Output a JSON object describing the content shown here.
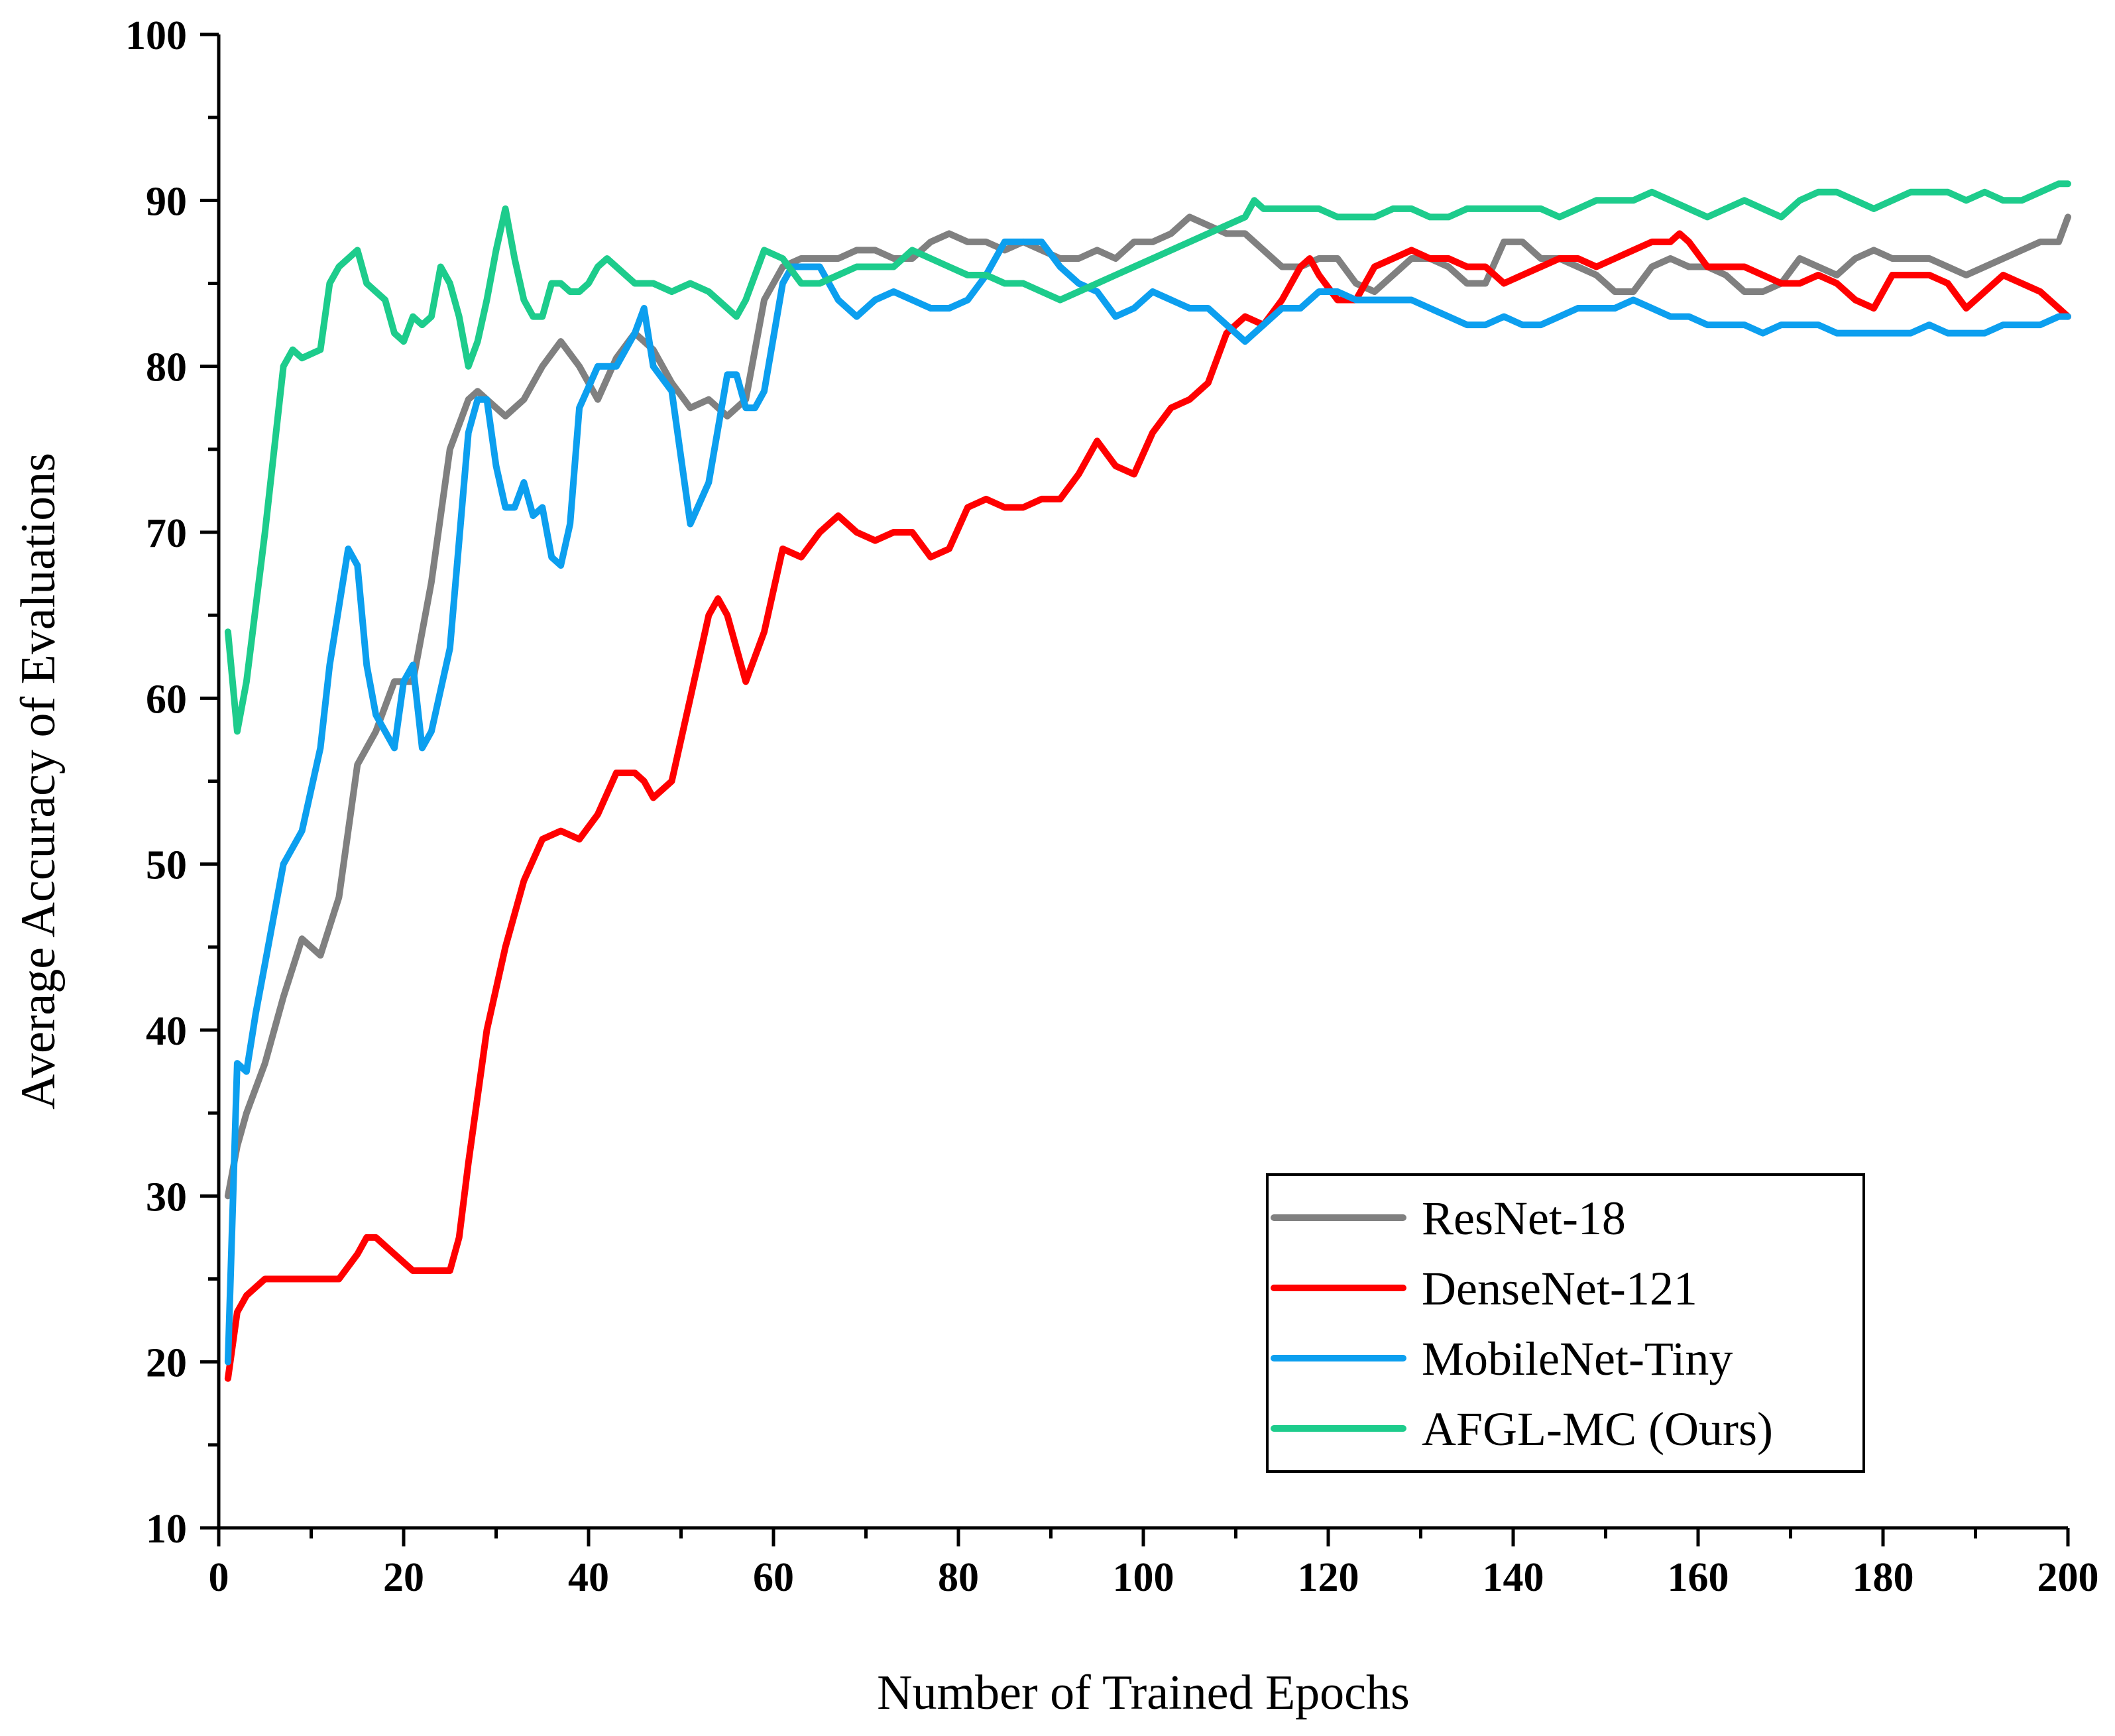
{
  "chart_data": {
    "type": "line",
    "title": "",
    "xlabel": "Number of Trained Epochs",
    "ylabel": "Average Accuracy of Evaluations",
    "xlim": [
      0,
      200
    ],
    "ylim": [
      10,
      100
    ],
    "xticks": [
      0,
      20,
      40,
      60,
      80,
      100,
      120,
      140,
      160,
      180,
      200
    ],
    "yticks": [
      10,
      20,
      30,
      40,
      50,
      60,
      70,
      80,
      90,
      100
    ],
    "xtick_labels": [
      "0",
      "20",
      "40",
      "60",
      "80",
      "100",
      "120",
      "140",
      "160",
      "180",
      "200"
    ],
    "ytick_labels": [
      "10",
      "20",
      "30",
      "40",
      "50",
      "60",
      "70",
      "80",
      "90",
      "100"
    ],
    "legend_position": "bottom-right",
    "grid": false,
    "series": [
      {
        "name": "ResNet-18",
        "color": "#808080",
        "x": [
          1,
          2,
          3,
          5,
          7,
          9,
          11,
          13,
          15,
          17,
          19,
          21,
          23,
          25,
          27,
          28,
          29,
          31,
          33,
          35,
          37,
          39,
          41,
          43,
          45,
          47,
          49,
          51,
          53,
          55,
          57,
          59,
          61,
          63,
          65,
          67,
          69,
          71,
          73,
          75,
          77,
          79,
          81,
          83,
          85,
          87,
          89,
          91,
          93,
          95,
          97,
          99,
          101,
          103,
          105,
          107,
          109,
          111,
          113,
          115,
          117,
          119,
          121,
          123,
          125,
          127,
          129,
          131,
          133,
          135,
          137,
          139,
          141,
          143,
          145,
          147,
          149,
          151,
          153,
          155,
          157,
          159,
          161,
          163,
          165,
          167,
          169,
          171,
          173,
          175,
          177,
          179,
          181,
          183,
          185,
          187,
          189,
          191,
          193,
          195,
          197,
          199,
          200
        ],
        "values": [
          30,
          33,
          35,
          38,
          42,
          45.5,
          44.5,
          48,
          56,
          58,
          61,
          61,
          67,
          75,
          78,
          78.5,
          78,
          77,
          78,
          80,
          81.5,
          80,
          78,
          80.5,
          82,
          81,
          79,
          77.5,
          78,
          77,
          78,
          84,
          86,
          86.5,
          86.5,
          86.5,
          87,
          87,
          86.5,
          86.5,
          87.5,
          88,
          87.5,
          87.5,
          87,
          87.5,
          87,
          86.5,
          86.5,
          87,
          86.5,
          87.5,
          87.5,
          88,
          89,
          88.5,
          88,
          88,
          87,
          86,
          86,
          86.5,
          86.5,
          85,
          84.5,
          85.5,
          86.5,
          86.5,
          86,
          85,
          85,
          87.5,
          87.5,
          86.5,
          86.5,
          86,
          85.5,
          84.5,
          84.5,
          86,
          86.5,
          86,
          86,
          85.5,
          84.5,
          84.5,
          85,
          86.5,
          86,
          85.5,
          86.5,
          87,
          86.5,
          86.5,
          86.5,
          86,
          85.5,
          86,
          86.5,
          87,
          87.5,
          87.5,
          89
        ]
      },
      {
        "name": "DenseNet-121",
        "color": "#ff0000",
        "x": [
          1,
          2,
          3,
          5,
          7,
          9,
          11,
          13,
          15,
          16,
          17,
          19,
          21,
          23,
          25,
          26,
          27,
          28,
          29,
          31,
          33,
          35,
          37,
          39,
          41,
          43,
          45,
          46,
          47,
          49,
          51,
          53,
          54,
          55,
          57,
          59,
          61,
          63,
          65,
          67,
          69,
          71,
          73,
          75,
          77,
          79,
          81,
          83,
          85,
          87,
          89,
          91,
          93,
          95,
          97,
          99,
          101,
          103,
          105,
          107,
          109,
          111,
          113,
          115,
          117,
          118,
          119,
          121,
          123,
          125,
          127,
          129,
          131,
          133,
          135,
          137,
          139,
          141,
          143,
          145,
          147,
          149,
          151,
          153,
          155,
          157,
          158,
          159,
          161,
          163,
          165,
          167,
          169,
          171,
          173,
          175,
          177,
          179,
          181,
          183,
          185,
          187,
          189,
          191,
          193,
          195,
          197,
          199,
          200
        ],
        "values": [
          19,
          23,
          24,
          25,
          25,
          25,
          25,
          25,
          26.5,
          27.5,
          27.5,
          26.5,
          25.5,
          25.5,
          25.5,
          27.5,
          32,
          36,
          40,
          45,
          49,
          51.5,
          52,
          51.5,
          53,
          55.5,
          55.5,
          55,
          54,
          55,
          60,
          65,
          66,
          65,
          61,
          64,
          69,
          68.5,
          70,
          71,
          70,
          69.5,
          70,
          70,
          68.5,
          69,
          71.5,
          72,
          71.5,
          71.5,
          72,
          72,
          73.5,
          75.5,
          74,
          73.5,
          76,
          77.5,
          78,
          79,
          82,
          83,
          82.5,
          84,
          86,
          86.5,
          85.5,
          84,
          84,
          86,
          86.5,
          87,
          86.5,
          86.5,
          86,
          86,
          85,
          85.5,
          86,
          86.5,
          86.5,
          86,
          86.5,
          87,
          87.5,
          87.5,
          88,
          87.5,
          86,
          86,
          86,
          85.5,
          85,
          85,
          85.5,
          85,
          84,
          83.5,
          85.5,
          85.5,
          85.5,
          85,
          83.5,
          84.5,
          85.5,
          85,
          84.5,
          83.5,
          83
        ]
      },
      {
        "name": "MobileNet-Tiny",
        "color": "#0c9fef",
        "x": [
          1,
          2,
          3,
          4,
          5,
          7,
          9,
          11,
          12,
          14,
          15,
          16,
          17,
          19,
          20,
          21,
          22,
          23,
          25,
          27,
          28,
          29,
          30,
          31,
          32,
          33,
          34,
          35,
          36,
          37,
          38,
          39,
          41,
          43,
          45,
          46,
          47,
          49,
          51,
          53,
          55,
          56,
          57,
          58,
          59,
          61,
          62,
          63,
          65,
          67,
          69,
          71,
          73,
          75,
          77,
          79,
          81,
          83,
          85,
          87,
          89,
          91,
          93,
          95,
          97,
          99,
          101,
          103,
          105,
          107,
          109,
          111,
          113,
          115,
          117,
          119,
          121,
          123,
          125,
          127,
          129,
          131,
          133,
          135,
          137,
          139,
          141,
          143,
          145,
          147,
          149,
          151,
          153,
          155,
          157,
          159,
          161,
          163,
          165,
          167,
          169,
          171,
          173,
          175,
          177,
          179,
          181,
          183,
          185,
          187,
          189,
          191,
          193,
          195,
          197,
          199,
          200
        ],
        "values": [
          20,
          38,
          37.5,
          41,
          44,
          50,
          52,
          57,
          62,
          69,
          68,
          62,
          59,
          57,
          61,
          62,
          57,
          58,
          63,
          76,
          78,
          78,
          74,
          71.5,
          71.5,
          73,
          71,
          71.5,
          68.5,
          68,
          70.5,
          77.5,
          80,
          80,
          82,
          83.5,
          80,
          78.5,
          70.5,
          73,
          79.5,
          79.5,
          77.5,
          77.5,
          78.5,
          85,
          86,
          86,
          86,
          84,
          83,
          84,
          84.5,
          84,
          83.5,
          83.5,
          84,
          85.5,
          87.5,
          87.5,
          87.5,
          86,
          85,
          84.5,
          83,
          83.5,
          84.5,
          84,
          83.5,
          83.5,
          82.5,
          81.5,
          82.5,
          83.5,
          83.5,
          84.5,
          84.5,
          84,
          84,
          84,
          84,
          83.5,
          83,
          82.5,
          82.5,
          83,
          82.5,
          82.5,
          83,
          83.5,
          83.5,
          83.5,
          84,
          83.5,
          83,
          83,
          82.5,
          82.5,
          82.5,
          82,
          82.5,
          82.5,
          82.5,
          82,
          82,
          82,
          82,
          82,
          82.5,
          82,
          82,
          82,
          82.5,
          82.5,
          82.5,
          83,
          83
        ]
      },
      {
        "name": "AFGL-MC (Ours)",
        "color": "#1dcc8c",
        "x": [
          1,
          2,
          3,
          5,
          7,
          8,
          9,
          11,
          12,
          13,
          15,
          16,
          17,
          18,
          19,
          20,
          21,
          22,
          23,
          24,
          25,
          26,
          27,
          28,
          29,
          30,
          31,
          32,
          33,
          34,
          35,
          36,
          37,
          38,
          39,
          40,
          41,
          42,
          43,
          45,
          47,
          49,
          51,
          53,
          55,
          56,
          57,
          59,
          61,
          63,
          65,
          67,
          69,
          71,
          73,
          75,
          77,
          79,
          81,
          83,
          85,
          87,
          89,
          91,
          93,
          95,
          97,
          99,
          101,
          103,
          105,
          107,
          109,
          111,
          112,
          113,
          115,
          117,
          119,
          121,
          123,
          125,
          127,
          129,
          131,
          133,
          135,
          137,
          139,
          141,
          143,
          145,
          147,
          149,
          151,
          153,
          155,
          157,
          159,
          161,
          163,
          165,
          167,
          169,
          171,
          173,
          175,
          177,
          179,
          181,
          183,
          185,
          187,
          189,
          191,
          193,
          195,
          197,
          199,
          200
        ],
        "values": [
          64,
          58,
          61,
          70,
          80,
          81,
          80.5,
          81,
          85,
          86,
          87,
          85,
          84.5,
          84,
          82,
          81.5,
          83,
          82.5,
          83,
          86,
          85,
          83,
          80,
          81.5,
          84,
          87,
          89.5,
          86.5,
          84,
          83,
          83,
          85,
          85,
          84.5,
          84.5,
          85,
          86,
          86.5,
          86,
          85,
          85,
          84.5,
          85,
          84.5,
          83.5,
          83,
          84,
          87,
          86.5,
          85,
          85,
          85.5,
          86,
          86,
          86,
          87,
          86.5,
          86,
          85.5,
          85.5,
          85,
          85,
          84.5,
          84,
          84.5,
          85,
          85.5,
          86,
          86.5,
          87,
          87.5,
          88,
          88.5,
          89,
          90,
          89.5,
          89.5,
          89.5,
          89.5,
          89,
          89,
          89,
          89.5,
          89.5,
          89,
          89,
          89.5,
          89.5,
          89.5,
          89.5,
          89.5,
          89,
          89.5,
          90,
          90,
          90,
          90.5,
          90,
          89.5,
          89,
          89.5,
          90,
          89.5,
          89,
          90,
          90.5,
          90.5,
          90,
          89.5,
          90,
          90.5,
          90.5,
          90.5,
          90,
          90.5,
          90,
          90,
          90.5,
          91,
          91
        ]
      }
    ]
  }
}
